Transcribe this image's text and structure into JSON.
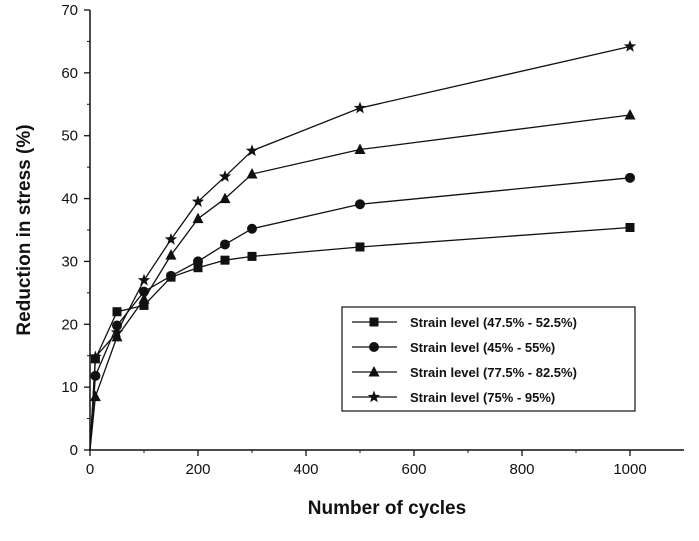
{
  "chart_data": {
    "type": "line",
    "xlabel": "Number of cycles",
    "ylabel": "Reduction in stress (%)",
    "xlim": [
      0,
      1100
    ],
    "ylim": [
      0,
      70
    ],
    "x_ticks": [
      0,
      200,
      400,
      600,
      800,
      1000
    ],
    "y_ticks": [
      0,
      10,
      20,
      30,
      40,
      50,
      60,
      70
    ],
    "legend_position": "lower-right",
    "grid": false,
    "line_color": "#111111",
    "series": [
      {
        "name": "Strain level (47.5% - 52.5%)",
        "marker": "square",
        "x": [
          0,
          10,
          50,
          100,
          150,
          200,
          250,
          300,
          500,
          1000
        ],
        "y": [
          0,
          14.5,
          22,
          23,
          27.5,
          29,
          30.2,
          30.8,
          32.3,
          35.4
        ]
      },
      {
        "name": "Strain level (45% - 55%)",
        "marker": "circle",
        "x": [
          0,
          10,
          50,
          100,
          150,
          200,
          250,
          300,
          500,
          1000
        ],
        "y": [
          0,
          11.8,
          19.8,
          25.2,
          27.7,
          30,
          32.7,
          35.2,
          39.1,
          43.3
        ]
      },
      {
        "name": "Strain level (77.5% - 82.5%)",
        "marker": "triangle",
        "x": [
          0,
          10,
          50,
          100,
          150,
          200,
          250,
          300,
          500,
          1000
        ],
        "y": [
          0,
          8.5,
          18,
          24,
          31,
          36.8,
          40,
          43.9,
          47.8,
          53.3
        ]
      },
      {
        "name": "Strain level (75% - 95%)",
        "marker": "star",
        "x": [
          0,
          10,
          50,
          100,
          150,
          200,
          250,
          300,
          500,
          1000
        ],
        "y": [
          0,
          14.8,
          18.7,
          27,
          33.5,
          39.5,
          43.5,
          47.6,
          54.4,
          64.2
        ]
      }
    ]
  }
}
